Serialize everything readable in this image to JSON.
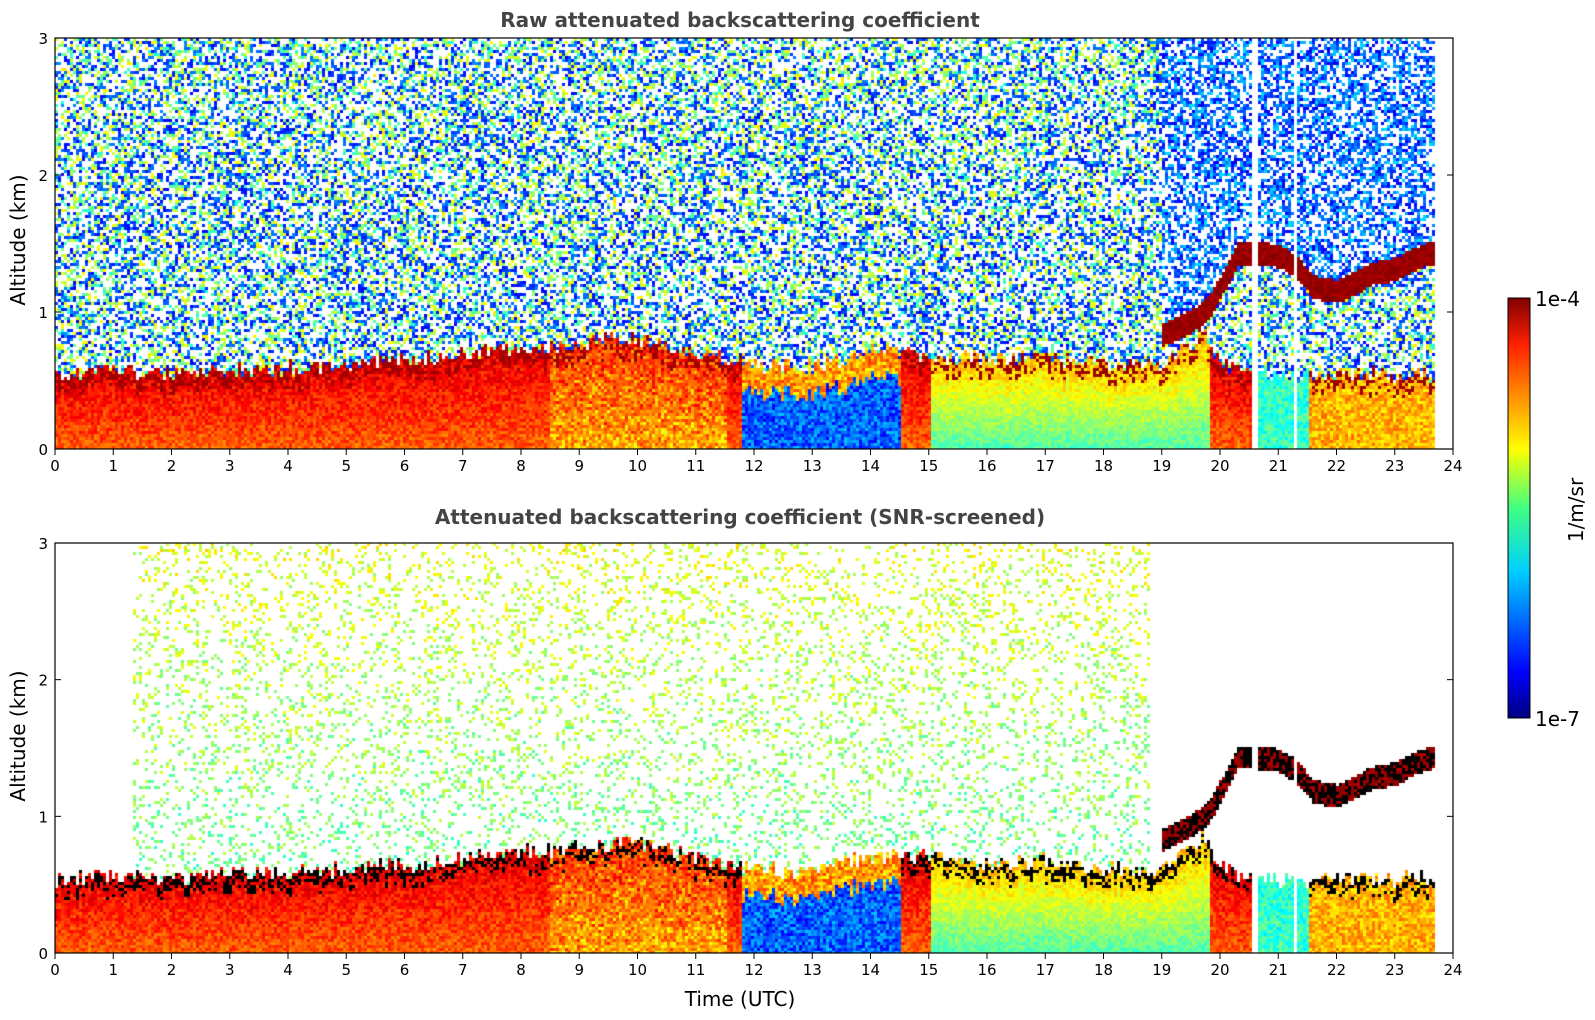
{
  "chart_data": [
    {
      "type": "heatmap",
      "title": "Raw attenuated backscattering coefficient",
      "xlabel": "",
      "ylabel": "Altitude (km)",
      "xlim": [
        0,
        24
      ],
      "ylim": [
        0,
        3
      ],
      "xticks": [
        0,
        1,
        2,
        3,
        4,
        5,
        6,
        7,
        8,
        9,
        10,
        11,
        12,
        13,
        14,
        15,
        16,
        17,
        18,
        19,
        20,
        21,
        22,
        23,
        24
      ],
      "yticks": [
        0,
        1,
        2,
        3
      ],
      "data_extent_hours": 23.65,
      "screened": false,
      "grid": false
    },
    {
      "type": "heatmap",
      "title": "Attenuated backscattering coefficient (SNR-screened)",
      "xlabel": "Time (UTC)",
      "ylabel": "Altitude (km)",
      "xlim": [
        0,
        24
      ],
      "ylim": [
        0,
        3
      ],
      "xticks": [
        0,
        1,
        2,
        3,
        4,
        5,
        6,
        7,
        8,
        9,
        10,
        11,
        12,
        13,
        14,
        15,
        16,
        17,
        18,
        19,
        20,
        21,
        22,
        23,
        24
      ],
      "yticks": [
        0,
        1,
        2,
        3
      ],
      "data_extent_hours": 23.65,
      "screened": true,
      "grid": false
    }
  ],
  "colorbar": {
    "label": "1/m/sr",
    "max_label": "1e-4",
    "min_label": "1e-7",
    "colormap": "jet",
    "scale": "log"
  },
  "colors": {
    "title": "#444444",
    "axis": "#000000",
    "saturated": "#000000"
  },
  "layers": {
    "boundary_layer_top_km": [
      [
        0,
        0.55
      ],
      [
        1,
        0.58
      ],
      [
        2,
        0.55
      ],
      [
        3,
        0.58
      ],
      [
        4,
        0.6
      ],
      [
        5,
        0.62
      ],
      [
        6,
        0.65
      ],
      [
        7,
        0.7
      ],
      [
        8,
        0.75
      ],
      [
        9,
        0.78
      ],
      [
        10,
        0.82
      ],
      [
        11,
        0.7
      ],
      [
        12,
        0.62
      ],
      [
        13,
        0.6
      ],
      [
        14,
        0.72
      ],
      [
        15,
        0.7
      ],
      [
        16,
        0.66
      ],
      [
        17,
        0.68
      ],
      [
        18,
        0.62
      ],
      [
        19,
        0.62
      ],
      [
        19.7,
        0.85
      ],
      [
        20,
        0.62
      ],
      [
        20.5,
        0.55
      ],
      [
        23.6,
        0.55
      ]
    ],
    "cloud_base_km": [
      [
        19.0,
        0.8
      ],
      [
        19.5,
        0.9
      ],
      [
        19.8,
        1.0
      ],
      [
        20.0,
        1.15
      ],
      [
        20.3,
        1.4
      ],
      [
        20.6,
        1.4
      ],
      [
        21.0,
        1.38
      ],
      [
        21.3,
        1.3
      ],
      [
        21.6,
        1.15
      ],
      [
        22.0,
        1.12
      ],
      [
        22.3,
        1.18
      ],
      [
        22.6,
        1.25
      ],
      [
        23.0,
        1.28
      ],
      [
        23.3,
        1.35
      ],
      [
        23.6,
        1.4
      ]
    ],
    "low_signal_window_hours": [
      11.8,
      14.5
    ],
    "data_gaps_hours": [
      [
        20.55,
        20.65
      ],
      [
        21.25,
        21.32
      ]
    ]
  }
}
